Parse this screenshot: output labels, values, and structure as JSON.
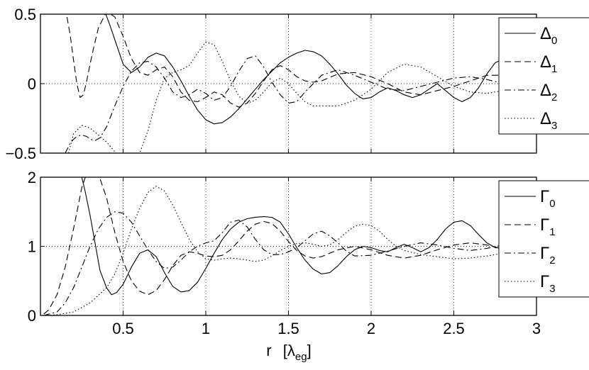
{
  "figure": {
    "xlabel": "r",
    "xlabel_unit": "[λ",
    "xlabel_unit_sub": "eg",
    "xlabel_unit_close": "]"
  },
  "chart_data": [
    {
      "type": "line",
      "xlim": [
        0,
        3
      ],
      "ylim": [
        -0.5,
        0.5
      ],
      "grid": true,
      "legend_position": "top-right",
      "yticks": [
        "−0.5",
        "0",
        "0.5"
      ],
      "legend": [
        {
          "base": "Δ",
          "sub": "0",
          "dash": "solid"
        },
        {
          "base": "Δ",
          "sub": "1",
          "dash": "dashed"
        },
        {
          "base": "Δ",
          "sub": "2",
          "dash": "dashdot"
        },
        {
          "base": "Δ",
          "sub": "3",
          "dash": "dotted"
        }
      ],
      "series": [
        {
          "name": "Δ0",
          "dash": "solid",
          "x": [
            0.38,
            0.42,
            0.46,
            0.5,
            0.55,
            0.6,
            0.65,
            0.7,
            0.75,
            0.8,
            0.85,
            0.9,
            0.95,
            1.0,
            1.05,
            1.1,
            1.15,
            1.2,
            1.25,
            1.3,
            1.35,
            1.4,
            1.45,
            1.5,
            1.55,
            1.6,
            1.65,
            1.7,
            1.75,
            1.8,
            1.85,
            1.9,
            1.95,
            2.0,
            2.05,
            2.1,
            2.15,
            2.2,
            2.25,
            2.3,
            2.35,
            2.4,
            2.45,
            2.5,
            2.55,
            2.6,
            2.65,
            2.7,
            2.75,
            2.8,
            2.85,
            2.9,
            2.95,
            3.0
          ],
          "y": [
            0.55,
            0.42,
            0.28,
            0.14,
            0.08,
            0.12,
            0.19,
            0.22,
            0.2,
            0.12,
            0.02,
            -0.09,
            -0.19,
            -0.26,
            -0.29,
            -0.28,
            -0.24,
            -0.18,
            -0.11,
            -0.04,
            0.03,
            0.09,
            0.15,
            0.19,
            0.22,
            0.24,
            0.23,
            0.2,
            0.14,
            0.07,
            -0.01,
            -0.07,
            -0.11,
            -0.1,
            -0.06,
            -0.03,
            -0.05,
            -0.08,
            -0.1,
            -0.08,
            -0.04,
            0.0,
            -0.05,
            -0.1,
            -0.13,
            -0.1,
            -0.03,
            0.07,
            0.15,
            0.18,
            0.15,
            0.09,
            0.04,
            0.02
          ]
        },
        {
          "name": "Δ1",
          "dash": "dashed",
          "x": [
            0.15,
            0.18,
            0.2,
            0.22,
            0.24,
            0.26,
            0.28,
            0.3,
            0.32,
            0.35,
            0.4,
            0.45,
            0.5,
            0.55,
            0.6,
            0.65,
            0.7,
            0.75,
            0.8,
            0.85,
            0.9,
            0.95,
            1.0,
            1.05,
            1.1,
            1.15,
            1.2,
            1.25,
            1.3,
            1.35,
            1.4,
            1.45,
            1.5,
            1.55,
            1.6,
            1.65,
            1.7,
            1.8,
            1.9,
            2.0,
            2.1,
            2.2,
            2.3,
            2.4,
            2.5,
            2.6,
            2.7,
            2.8,
            2.9,
            3.0
          ],
          "y": [
            0.55,
            0.35,
            0.17,
            0.0,
            -0.1,
            -0.08,
            0.02,
            0.14,
            0.25,
            0.4,
            0.52,
            0.48,
            0.34,
            0.18,
            0.08,
            0.06,
            0.1,
            0.12,
            0.05,
            -0.06,
            -0.12,
            -0.13,
            -0.1,
            -0.06,
            -0.08,
            -0.14,
            -0.17,
            -0.14,
            -0.07,
            0.02,
            0.1,
            0.13,
            0.1,
            0.05,
            0.02,
            0.01,
            0.02,
            0.07,
            0.08,
            0.05,
            0.0,
            -0.06,
            -0.08,
            -0.05,
            -0.02,
            0.02,
            0.06,
            0.06,
            0.03,
            0.0
          ]
        },
        {
          "name": "Δ2",
          "dash": "dashdot",
          "x": [
            0.15,
            0.18,
            0.2,
            0.22,
            0.25,
            0.28,
            0.3,
            0.33,
            0.36,
            0.4,
            0.45,
            0.5,
            0.55,
            0.6,
            0.65,
            0.7,
            0.75,
            0.8,
            0.85,
            0.9,
            0.95,
            1.0,
            1.05,
            1.1,
            1.15,
            1.2,
            1.25,
            1.3,
            1.35,
            1.4,
            1.45,
            1.5,
            1.55,
            1.6,
            1.7,
            1.8,
            1.9,
            2.0,
            2.1,
            2.2,
            2.3,
            2.4,
            2.5,
            2.6,
            2.7,
            2.8,
            2.9,
            3.0
          ],
          "y": [
            -0.5,
            -0.43,
            -0.4,
            -0.38,
            -0.37,
            -0.38,
            -0.4,
            -0.41,
            -0.39,
            -0.31,
            -0.16,
            -0.02,
            0.09,
            0.15,
            0.16,
            0.12,
            0.04,
            -0.06,
            -0.1,
            -0.08,
            -0.04,
            -0.07,
            -0.12,
            -0.1,
            -0.02,
            0.09,
            0.18,
            0.2,
            0.12,
            0.01,
            -0.08,
            -0.14,
            -0.13,
            -0.06,
            0.06,
            0.1,
            0.06,
            0.01,
            -0.04,
            -0.05,
            -0.02,
            0.01,
            0.04,
            0.05,
            0.03,
            0.0,
            -0.03,
            -0.05
          ]
        },
        {
          "name": "Δ3",
          "dash": "dotted",
          "x": [
            0.17,
            0.2,
            0.25,
            0.3,
            0.35,
            0.4,
            0.45,
            0.5,
            0.55,
            0.6,
            0.65,
            0.7,
            0.75,
            0.8,
            0.85,
            0.9,
            0.95,
            1.0,
            1.05,
            1.1,
            1.15,
            1.2,
            1.25,
            1.3,
            1.35,
            1.4,
            1.45,
            1.5,
            1.55,
            1.6,
            1.65,
            1.7,
            1.8,
            1.9,
            2.0,
            2.1,
            2.2,
            2.3,
            2.4,
            2.5,
            2.6,
            2.7,
            2.8,
            2.9,
            3.0
          ],
          "y": [
            -0.5,
            -0.36,
            -0.3,
            -0.32,
            -0.37,
            -0.42,
            -0.49,
            -0.56,
            -0.58,
            -0.5,
            -0.34,
            -0.12,
            0.04,
            0.08,
            0.1,
            0.13,
            0.22,
            0.3,
            0.28,
            0.16,
            0.02,
            -0.09,
            -0.14,
            -0.12,
            -0.06,
            0.01,
            0.04,
            0.0,
            -0.07,
            -0.13,
            -0.16,
            -0.16,
            -0.16,
            -0.12,
            -0.04,
            0.08,
            0.14,
            0.12,
            0.05,
            -0.02,
            -0.06,
            -0.07,
            -0.05,
            -0.03,
            -0.03
          ]
        }
      ]
    },
    {
      "type": "line",
      "xlim": [
        0,
        3
      ],
      "ylim": [
        0,
        2
      ],
      "grid": true,
      "legend_position": "top-right",
      "xticks": [
        "0.5",
        "1",
        "1.5",
        "2",
        "2.5",
        "3"
      ],
      "yticks": [
        "0",
        "1",
        "2"
      ],
      "legend": [
        {
          "base": "Γ",
          "sub": "0",
          "dash": "solid"
        },
        {
          "base": "Γ",
          "sub": "1",
          "dash": "dashed"
        },
        {
          "base": "Γ",
          "sub": "2",
          "dash": "dashdot"
        },
        {
          "base": "Γ",
          "sub": "3",
          "dash": "dotted"
        }
      ],
      "series": [
        {
          "name": "Γ0",
          "dash": "solid",
          "x": [
            0.24,
            0.27,
            0.3,
            0.33,
            0.36,
            0.4,
            0.43,
            0.46,
            0.5,
            0.55,
            0.6,
            0.65,
            0.7,
            0.75,
            0.8,
            0.85,
            0.9,
            0.95,
            1.0,
            1.05,
            1.1,
            1.15,
            1.2,
            1.25,
            1.3,
            1.35,
            1.4,
            1.45,
            1.5,
            1.55,
            1.6,
            1.65,
            1.7,
            1.75,
            1.8,
            1.85,
            1.9,
            1.95,
            2.0,
            2.05,
            2.1,
            2.15,
            2.2,
            2.25,
            2.3,
            2.35,
            2.4,
            2.45,
            2.5,
            2.55,
            2.6,
            2.65,
            2.7,
            2.75,
            2.8,
            2.85,
            2.9,
            2.95,
            3.0
          ],
          "y": [
            2.1,
            1.8,
            1.45,
            1.05,
            0.65,
            0.4,
            0.3,
            0.33,
            0.45,
            0.7,
            0.9,
            0.95,
            0.85,
            0.62,
            0.42,
            0.34,
            0.36,
            0.48,
            0.68,
            0.9,
            1.1,
            1.25,
            1.35,
            1.4,
            1.42,
            1.43,
            1.42,
            1.35,
            1.18,
            0.98,
            0.8,
            0.67,
            0.6,
            0.62,
            0.72,
            0.85,
            0.95,
            1.0,
            0.98,
            0.94,
            0.92,
            0.98,
            1.03,
            0.98,
            0.92,
            0.98,
            1.1,
            1.25,
            1.35,
            1.37,
            1.3,
            1.17,
            1.05,
            0.98,
            0.97,
            1.0,
            1.03,
            1.05,
            1.05
          ]
        },
        {
          "name": "Γ1",
          "dash": "dashed",
          "x": [
            0.02,
            0.05,
            0.1,
            0.15,
            0.2,
            0.25,
            0.3,
            0.35,
            0.4,
            0.45,
            0.5,
            0.55,
            0.6,
            0.65,
            0.7,
            0.75,
            0.8,
            0.85,
            0.9,
            0.95,
            1.0,
            1.05,
            1.1,
            1.15,
            1.2,
            1.25,
            1.3,
            1.35,
            1.4,
            1.45,
            1.5,
            1.55,
            1.6,
            1.65,
            1.7,
            1.8,
            1.9,
            2.0,
            2.1,
            2.2,
            2.3,
            2.4,
            2.5,
            2.6,
            2.7,
            2.8,
            2.9,
            3.0
          ],
          "y": [
            0.02,
            0.08,
            0.3,
            0.7,
            1.25,
            1.85,
            2.2,
            2.05,
            1.7,
            1.2,
            0.78,
            0.5,
            0.35,
            0.3,
            0.36,
            0.52,
            0.72,
            0.87,
            0.92,
            0.9,
            0.86,
            0.85,
            0.87,
            0.95,
            1.08,
            1.22,
            1.32,
            1.36,
            1.33,
            1.22,
            1.07,
            0.94,
            0.86,
            0.83,
            0.85,
            0.95,
            1.0,
            0.95,
            0.87,
            0.83,
            0.87,
            0.95,
            1.02,
            1.05,
            1.02,
            0.96,
            0.93,
            0.95
          ]
        },
        {
          "name": "Γ2",
          "dash": "dashdot",
          "x": [
            0.02,
            0.1,
            0.15,
            0.2,
            0.25,
            0.3,
            0.35,
            0.4,
            0.45,
            0.5,
            0.55,
            0.6,
            0.65,
            0.7,
            0.75,
            0.8,
            0.85,
            0.9,
            0.95,
            1.0,
            1.05,
            1.1,
            1.15,
            1.2,
            1.25,
            1.3,
            1.35,
            1.4,
            1.45,
            1.5,
            1.55,
            1.6,
            1.65,
            1.7,
            1.75,
            1.8,
            1.85,
            1.9,
            2.0,
            2.1,
            2.2,
            2.3,
            2.4,
            2.5,
            2.6,
            2.7,
            2.8,
            2.9,
            3.0
          ],
          "y": [
            0.0,
            0.05,
            0.18,
            0.4,
            0.7,
            1.0,
            1.25,
            1.42,
            1.5,
            1.48,
            1.35,
            1.15,
            0.95,
            0.78,
            0.68,
            0.7,
            0.8,
            0.92,
            1.0,
            1.05,
            1.08,
            1.2,
            1.35,
            1.38,
            1.28,
            1.1,
            0.95,
            0.88,
            0.88,
            0.92,
            0.98,
            1.08,
            1.18,
            1.22,
            1.15,
            1.05,
            0.93,
            0.86,
            0.87,
            0.93,
            1.0,
            1.05,
            1.02,
            0.97,
            0.94,
            0.97,
            1.02,
            1.04,
            1.02
          ]
        },
        {
          "name": "Γ3",
          "dash": "dotted",
          "x": [
            0.02,
            0.1,
            0.2,
            0.3,
            0.4,
            0.45,
            0.5,
            0.55,
            0.6,
            0.65,
            0.7,
            0.75,
            0.8,
            0.85,
            0.9,
            0.95,
            1.0,
            1.05,
            1.1,
            1.15,
            1.2,
            1.25,
            1.3,
            1.35,
            1.4,
            1.45,
            1.5,
            1.55,
            1.6,
            1.65,
            1.7,
            1.75,
            1.8,
            1.85,
            1.9,
            1.95,
            2.0,
            2.05,
            2.1,
            2.15,
            2.2,
            2.3,
            2.4,
            2.5,
            2.6,
            2.7,
            2.8,
            2.9,
            3.0
          ],
          "y": [
            0.0,
            0.01,
            0.05,
            0.18,
            0.4,
            0.6,
            0.9,
            1.25,
            1.55,
            1.78,
            1.87,
            1.8,
            1.6,
            1.35,
            1.1,
            0.92,
            0.82,
            0.8,
            0.82,
            0.83,
            0.82,
            0.8,
            0.78,
            0.8,
            0.86,
            0.94,
            1.0,
            1.04,
            1.05,
            1.03,
            1.0,
            1.02,
            1.1,
            1.2,
            1.29,
            1.32,
            1.3,
            1.22,
            1.1,
            1.0,
            0.94,
            0.88,
            0.85,
            0.82,
            0.83,
            0.86,
            0.9,
            0.93,
            0.94
          ]
        }
      ]
    }
  ]
}
